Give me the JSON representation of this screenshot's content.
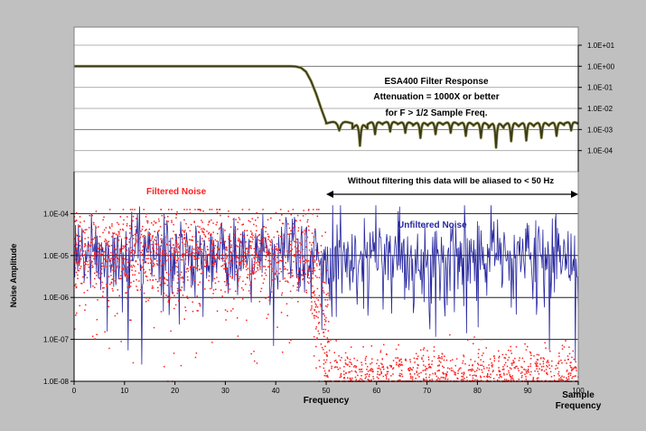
{
  "chart_data": [
    {
      "type": "line",
      "panel": "top",
      "title": "ESA400 Filter Response",
      "annotation_lines": [
        "Attenuation = 1000X or better",
        "for F > 1/2 Sample Freq."
      ],
      "y_scale": "log",
      "ylim": [
        1e-05,
        10
      ],
      "y_ticks": [
        "1.0E+01",
        "1.0E+00",
        "1.0E-01",
        "1.0E-02",
        "1.0E-03",
        "1.0E-04"
      ],
      "y_tick_values": [
        10,
        1,
        0.1,
        0.01,
        0.001,
        0.0001
      ],
      "xlim": [
        0,
        100
      ],
      "series": [
        {
          "color": "#3a3a20",
          "passband": {
            "x_end": 43,
            "y": 1.0
          },
          "rolloff": [
            [
              43,
              1.0
            ],
            [
              44,
              0.97
            ],
            [
              45,
              0.85
            ],
            [
              46,
              0.55
            ],
            [
              47,
              0.2
            ],
            [
              48,
              0.05
            ],
            [
              49,
              0.01
            ],
            [
              50,
              0.0022
            ]
          ],
          "stopband_lobes": [
            [
              50,
              55.2,
              0.0025,
              0.0009
            ],
            [
              55.2,
              58.2,
              0.002,
              0.00017
            ],
            [
              58.2,
              61.2,
              0.0025,
              0.0006
            ],
            [
              61.2,
              64.2,
              0.0025,
              0.0008
            ],
            [
              64.2,
              67.2,
              0.0024,
              0.0007
            ],
            [
              67.2,
              70.2,
              0.0024,
              0.0004
            ],
            [
              70.2,
              73.2,
              0.0024,
              0.0006
            ],
            [
              73.2,
              76.2,
              0.0024,
              0.0007
            ],
            [
              76.2,
              79.2,
              0.0024,
              0.0005
            ],
            [
              79.2,
              82.2,
              0.0024,
              0.0004
            ],
            [
              82.2,
              85.2,
              0.0024,
              0.00014
            ],
            [
              85.2,
              88.2,
              0.0024,
              0.00028
            ],
            [
              88.2,
              91.2,
              0.0024,
              0.0003
            ],
            [
              91.2,
              94.2,
              0.0024,
              0.0004
            ],
            [
              94.2,
              97.2,
              0.0024,
              0.0005
            ],
            [
              97.2,
              100,
              0.0024,
              0.0009
            ]
          ]
        }
      ]
    },
    {
      "type": "scatter",
      "panel": "bottom",
      "xlabel": "Frequency",
      "x_end_label_lines": [
        "Sample",
        "Frequency"
      ],
      "ylabel": "Noise Amplitude",
      "y_scale": "log",
      "ylim": [
        1e-08,
        0.001
      ],
      "y_ticks": [
        "1.0E-04",
        "1.0E-05",
        "1.0E-06",
        "1.0E-07",
        "1.0E-08"
      ],
      "y_tick_values": [
        0.0001,
        1e-05,
        1e-06,
        1e-07,
        1e-08
      ],
      "xlim": [
        0,
        100
      ],
      "x_ticks": [
        "0",
        "10",
        "20",
        "30",
        "40",
        "50",
        "60",
        "70",
        "80",
        "90",
        "100"
      ],
      "x_tick_values": [
        0,
        10,
        20,
        30,
        40,
        50,
        60,
        70,
        80,
        90,
        100
      ],
      "alias_annotation": "Without filtering this data will be aliased to < 50 Hz",
      "alias_range": [
        50,
        100
      ],
      "series": [
        {
          "name": "Filtered Noise",
          "color": "#ff2020",
          "style": "points",
          "segments": [
            {
              "x_range": [
                0,
                47
              ],
              "center_log": -5.0,
              "spread_log": 0.55,
              "count": 1400
            },
            {
              "x_range": [
                47,
                51
              ],
              "center_log": -6.3,
              "spread_log": 1.0,
              "count": 160
            },
            {
              "x_range": [
                51,
                100
              ],
              "center_log": -7.85,
              "spread_log": 0.3,
              "count": 950
            }
          ]
        },
        {
          "name": "Unfiltered Noise",
          "color": "#2828a0",
          "style": "line",
          "x_range": [
            0,
            100
          ],
          "center_log": -5.0,
          "spread_log": 0.45,
          "count": 700
        }
      ]
    }
  ]
}
